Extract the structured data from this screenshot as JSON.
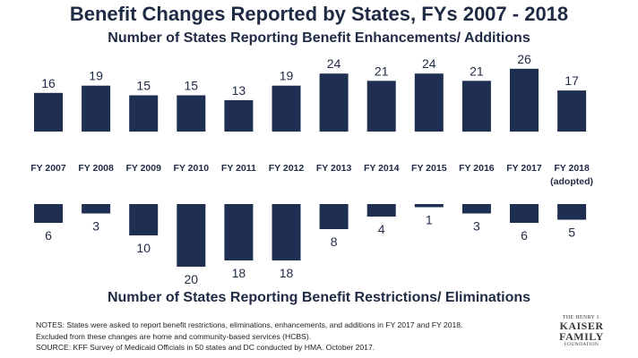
{
  "title": "Benefit Changes Reported by States, FYs 2007 - 2018",
  "subtitle_top": "Number of States Reporting Benefit Enhancements/ Additions",
  "subtitle_bottom": "Number of States Reporting Benefit Restrictions/ Eliminations",
  "notes": [
    "NOTES: States were asked to report benefit restrictions, eliminations, enhancements, and additions in FY 2017 and FY 2018.",
    "Excluded from these changes are home and community-based services (HCBS).",
    "SOURCE: KFF Survey of Medicaid Officials in 50 states and DC conducted by HMA. October 2017."
  ],
  "logo": {
    "line1": "THE HENRY J.",
    "line2a": "KAISER",
    "line2b": "FAMILY",
    "line3": "FOUNDATION"
  },
  "colors": {
    "bar": "#1f2f52",
    "text": "#1f2a44"
  },
  "chart_data": {
    "type": "bar",
    "categories": [
      "FY 2007",
      "FY 2008",
      "FY 2009",
      "FY 2010",
      "FY 2011",
      "FY 2012",
      "FY 2013",
      "FY 2014",
      "FY 2015",
      "FY 2016",
      "FY 2017",
      "FY 2018"
    ],
    "category_sublabels": [
      "",
      "",
      "",
      "",
      "",
      "",
      "",
      "",
      "",
      "",
      "",
      "(adopted)"
    ],
    "series": [
      {
        "values": [
          16,
          19,
          15,
          15,
          13,
          19,
          24,
          21,
          24,
          21,
          26,
          17
        ]
      },
      {
        "values": [
          6,
          3,
          10,
          20,
          18,
          18,
          8,
          4,
          1,
          3,
          6,
          5
        ]
      }
    ],
    "ylim": [
      0,
      26
    ]
  }
}
